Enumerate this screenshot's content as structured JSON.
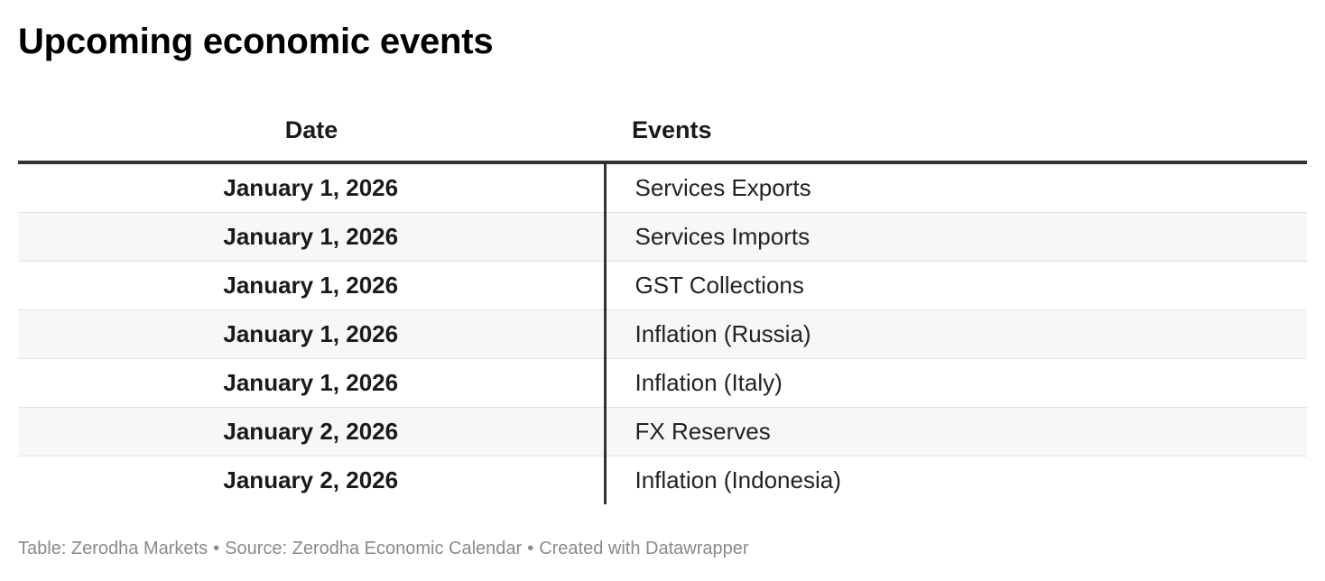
{
  "chart_data": {
    "type": "table",
    "title": "Upcoming economic events",
    "columns": [
      "Date",
      "Events"
    ],
    "rows": [
      {
        "date": "January 1, 2026",
        "event": "Services Exports"
      },
      {
        "date": "January 1, 2026",
        "event": "Services Imports"
      },
      {
        "date": "January 1, 2026",
        "event": "GST Collections"
      },
      {
        "date": "January 1, 2026",
        "event": "Inflation (Russia)"
      },
      {
        "date": "January 1, 2026",
        "event": "Inflation (Italy)"
      },
      {
        "date": "January 2, 2026",
        "event": "FX Reserves"
      },
      {
        "date": "January 2, 2026",
        "event": "Inflation (Indonesia)"
      }
    ],
    "footer": {
      "table_credit": "Table: Zerodha Markets",
      "source": "Source: Zerodha Economic Calendar",
      "created_with": "Created with Datawrapper",
      "separator": "•"
    }
  },
  "colors": {
    "title": "#000000",
    "text": "#1a1a1a",
    "header_rule": "#333333",
    "row_stripe": "#f7f7f7",
    "row_border": "#e2e2e2",
    "footer_text": "#8a8a8a"
  }
}
